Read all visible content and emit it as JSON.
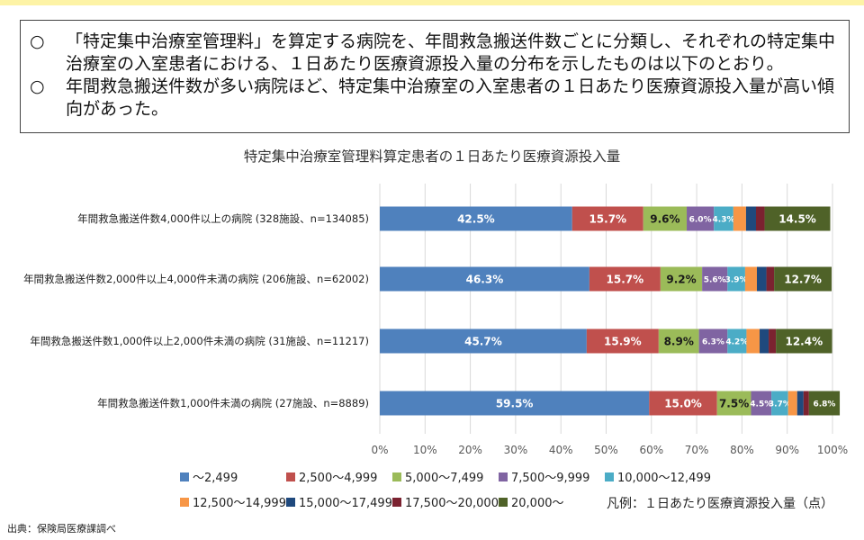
{
  "notes": [
    {
      "marker": "○",
      "text": "「特定集中治療室管理料」を算定する病院を、年間救急搬送件数ごとに分類し、それぞれの特定集中治療室の入室患者における、１日あたり医療資源投入量の分布を示したものは以下のとおり。"
    },
    {
      "marker": "○",
      "text": "年間救急搬送件数が多い病院ほど、特定集中治療室の入室患者の１日あたり医療資源投入量が高い傾向があった。"
    }
  ],
  "chart_data": {
    "type": "bar",
    "orientation": "horizontal",
    "stacked": true,
    "percent": true,
    "title": "特定集中治療室管理料算定患者の１日あたり医療資源投入量",
    "categories": [
      "年間救急搬送件数4,000件以上の病院 (328施設、n=134085)",
      "年間救急搬送件数2,000件以上4,000件未満の病院 (206施設、n=62002)",
      "年間救急搬送件数1,000件以上2,000件未満の病院 (31施設、n=11217)",
      "年間救急搬送件数1,000件未満の病院 (27施設、n=8889)"
    ],
    "series": [
      {
        "name": "～2,499",
        "color": "#4f81bd",
        "values": [
          42.5,
          46.3,
          45.7,
          59.5
        ],
        "labels": [
          "42.5%",
          "46.3%",
          "45.7%",
          "59.5%"
        ]
      },
      {
        "name": "2,500～4,999",
        "color": "#c0504d",
        "values": [
          15.7,
          15.7,
          15.9,
          15.0
        ],
        "labels": [
          "15.7%",
          "15.7%",
          "15.9%",
          "15.0%"
        ]
      },
      {
        "name": "5,000～7,499",
        "color": "#9bbb59",
        "values": [
          9.6,
          9.2,
          8.9,
          7.5
        ],
        "labels": [
          "9.6%",
          "9.2%",
          "8.9%",
          "7.5%"
        ]
      },
      {
        "name": "7,500～9,999",
        "color": "#8064a2",
        "values": [
          6.0,
          5.6,
          6.3,
          4.5
        ],
        "labels": [
          "6.0%",
          "5.6%",
          "6.3%",
          "4.5%"
        ]
      },
      {
        "name": "10,000～12,499",
        "color": "#4bacc6",
        "values": [
          4.3,
          3.9,
          4.2,
          3.7
        ],
        "labels": [
          "4.3%",
          "3.9%",
          "4.2%",
          "3.7%"
        ]
      },
      {
        "name": "12,500～14,999",
        "color": "#f79646",
        "values": [
          2.8,
          2.6,
          2.9,
          2.0
        ],
        "labels": [
          "",
          "",
          "",
          ""
        ]
      },
      {
        "name": "15,000～17,499",
        "color": "#1f497d",
        "values": [
          2.2,
          2.1,
          2.0,
          1.4
        ],
        "labels": [
          "",
          "",
          "",
          ""
        ]
      },
      {
        "name": "17,500～20,000",
        "color": "#7b2230",
        "values": [
          1.9,
          1.7,
          1.6,
          1.2
        ],
        "labels": [
          "",
          "",
          "",
          ""
        ]
      },
      {
        "name": "20,000～",
        "color": "#4f6228",
        "values": [
          14.5,
          12.7,
          12.4,
          6.8
        ],
        "labels": [
          "14.5%",
          "12.7%",
          "12.4%",
          "6.8%"
        ]
      }
    ],
    "xticks": [
      "0%",
      "10%",
      "20%",
      "30%",
      "40%",
      "50%",
      "60%",
      "70%",
      "80%",
      "90%",
      "100%"
    ],
    "xlim": [
      0,
      100
    ],
    "grid": true,
    "legend": "bottom"
  },
  "legend_note": "凡例：１日あたり医療資源投入量（点）",
  "source": "出典：保険局医療課調べ"
}
